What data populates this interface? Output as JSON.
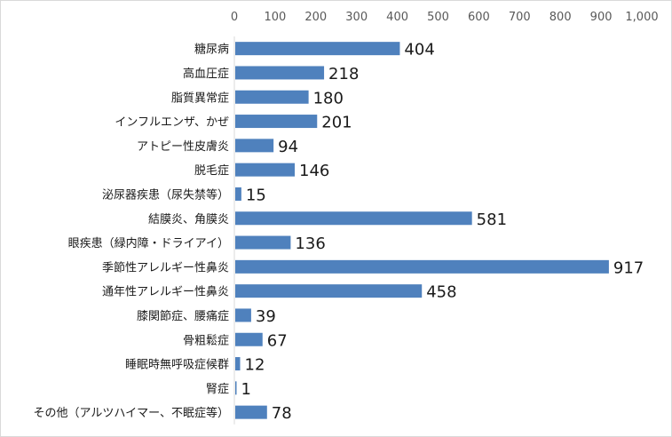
{
  "chart_data": {
    "type": "bar",
    "orientation": "horizontal",
    "xaxis_position": "top",
    "grid": false,
    "legend": false,
    "bar_color": "#4f81bd",
    "xlim": [
      0,
      1000
    ],
    "xticks": [
      0,
      100,
      200,
      300,
      400,
      500,
      600,
      700,
      800,
      900,
      1000
    ],
    "xtick_labels": [
      "0",
      "100",
      "200",
      "300",
      "400",
      "500",
      "600",
      "700",
      "800",
      "900",
      "1,000"
    ],
    "categories": [
      "糖尿病",
      "高血圧症",
      "脂質異常症",
      "インフルエンザ、かぜ",
      "アトピー性皮膚炎",
      "脱毛症",
      "泌尿器疾患（尿失禁等）",
      "結膜炎、角膜炎",
      "眼疾患（緑内障・ドライアイ）",
      "季節性アレルギー性鼻炎",
      "通年性アレルギー性鼻炎",
      "膝関節症、腰痛症",
      "骨粗鬆症",
      "睡眠時無呼吸症候群",
      "腎症",
      "その他（アルツハイマー、不眠症等）"
    ],
    "values": [
      404,
      218,
      180,
      201,
      94,
      146,
      15,
      581,
      136,
      917,
      458,
      39,
      67,
      12,
      1,
      78
    ],
    "value_labels": [
      "404",
      "218",
      "180",
      "201",
      "94",
      "146",
      "15",
      "581",
      "136",
      "917",
      "458",
      "39",
      "67",
      "12",
      "1",
      "78"
    ]
  }
}
